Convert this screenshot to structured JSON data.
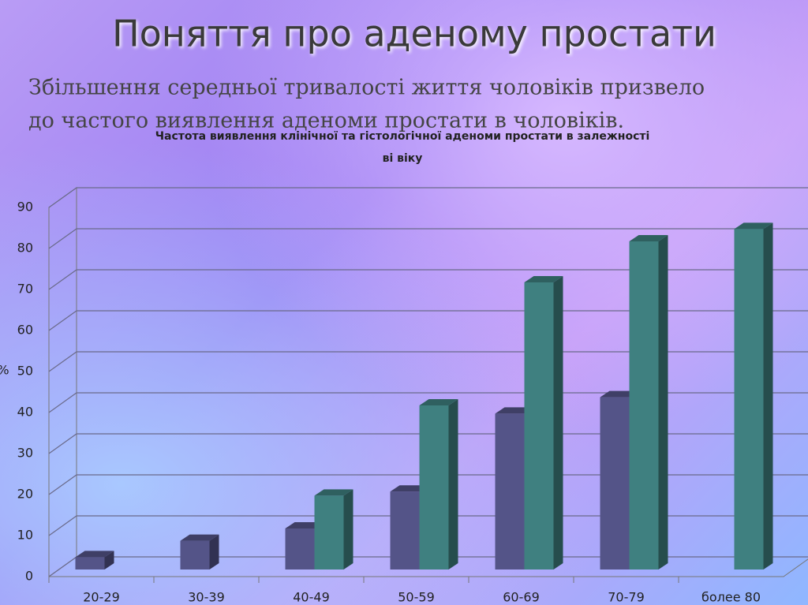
{
  "slide": {
    "title": "Поняття про аденому простати",
    "text": [
      "Збільшення середньої тривалості життя чоловіків призвело",
      "до частого виявлення аденоми простати в чоловіків."
    ]
  },
  "chart_data": {
    "type": "bar3d",
    "title": [
      "Частота виявлення клінічної та гістологічної аденоми простати в залежності",
      "ві віку"
    ],
    "y_label": "%",
    "categories": [
      "20-29",
      "30-39",
      "40-49",
      "50-59",
      "60-69",
      "70-79",
      "более 80"
    ],
    "series": [
      {
        "color": "#545488",
        "values": [
          3,
          7,
          10,
          19,
          38,
          42,
          null
        ]
      },
      {
        "color": "#3f8080",
        "values": [
          null,
          null,
          18,
          40,
          70,
          80,
          83
        ]
      }
    ],
    "ylim": [
      0,
      90
    ],
    "yticks": [
      0,
      10,
      20,
      30,
      40,
      50,
      60,
      70,
      80,
      90
    ],
    "grid": true
  }
}
